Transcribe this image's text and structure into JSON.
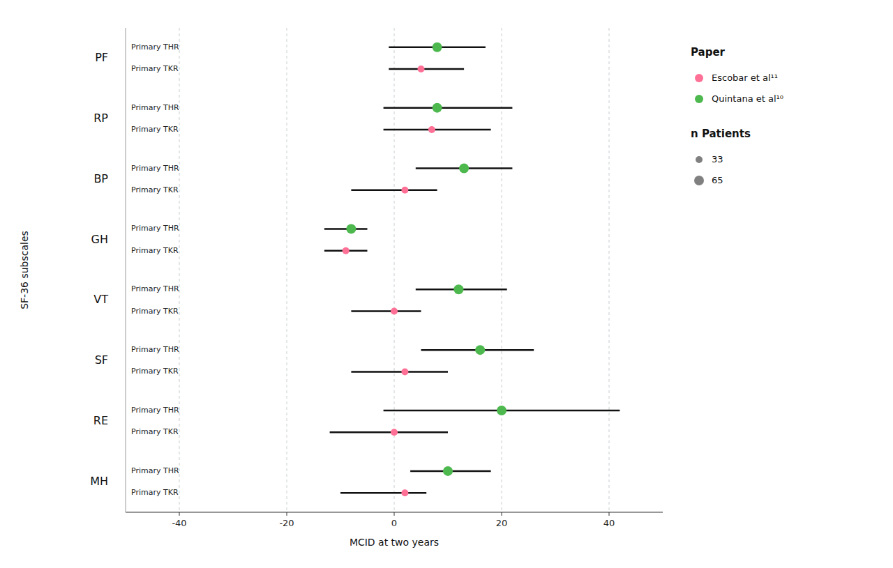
{
  "chart_data": {
    "type": "dot",
    "xlabel": "MCID at two years",
    "ylabel": "SF-36 subscales",
    "categories": [
      "PF",
      "RP",
      "BP",
      "GH",
      "VT",
      "SF",
      "RE",
      "MH"
    ],
    "xlim": [
      -50,
      50
    ],
    "xticks": [
      -40,
      -20,
      0,
      20,
      40
    ],
    "grid": true,
    "legend_title": "Paper",
    "series": [
      {
        "name": "Quintana et al¹⁰",
        "row_label": "Primary THR",
        "color": "#4db84e",
        "values": [
          8.0,
          8.0,
          13.0,
          -8.0,
          12.0,
          16.0,
          20.0,
          10.0
        ],
        "lo": [
          -1.0,
          -2.0,
          4.0,
          -13.0,
          4.0,
          5.0,
          -2.0,
          3.0
        ],
        "hi": [
          17.0,
          22.0,
          22.0,
          -5.0,
          21.0,
          26.0,
          42.0,
          18.0
        ],
        "n": [
          65,
          65,
          65,
          65,
          65,
          65,
          65,
          65
        ]
      },
      {
        "name": "Escobar et al¹¹",
        "row_label": "Primary TKR",
        "color": "#ff7096",
        "values": [
          5.0,
          7.0,
          2.0,
          -9.0,
          0.0,
          2.0,
          0.0,
          2.0
        ],
        "lo": [
          -1.0,
          -2.0,
          -8.0,
          -13.0,
          -8.0,
          -8.0,
          -12.0,
          -10.0
        ],
        "hi": [
          13.0,
          18.0,
          8.0,
          -5.0,
          5.0,
          10.0,
          10.0,
          6.0
        ],
        "n": [
          33,
          33,
          33,
          33,
          33,
          33,
          33,
          33
        ]
      }
    ],
    "size_legend": {
      "title": "n Patients",
      "values": [
        33,
        65
      ],
      "color": "#808080"
    }
  }
}
